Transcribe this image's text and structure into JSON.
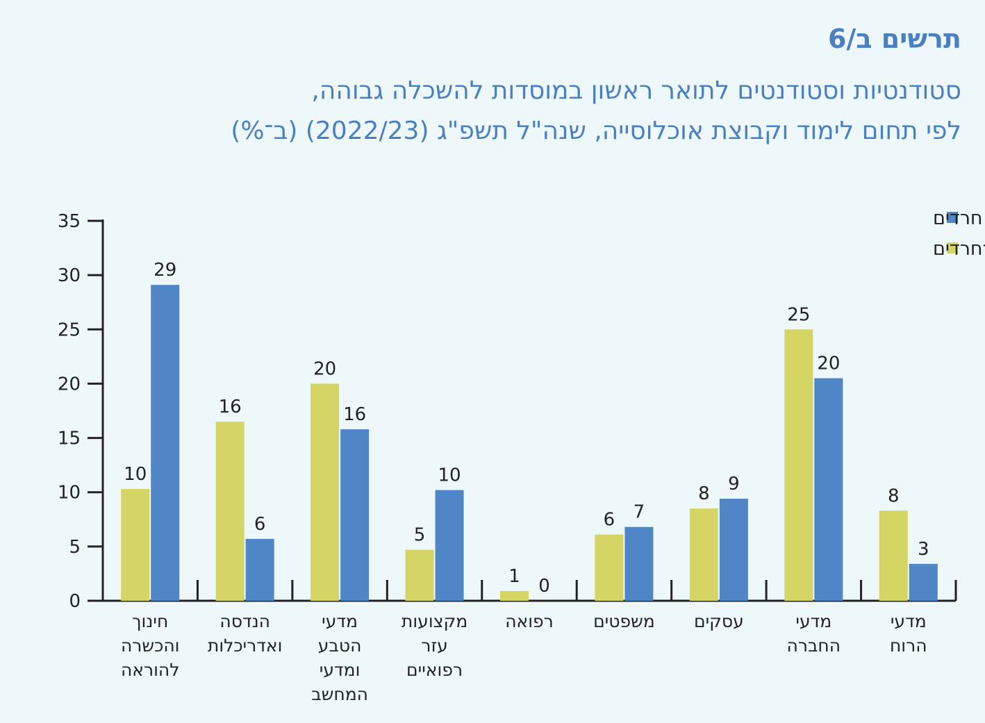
{
  "header": {
    "fig_label": "תרשים ב/6",
    "title_line1": "סטודנטיות וסטודנטים לתואר ראשון במוסדות להשכלה גבוהה,",
    "title_line2": "לפי תחום לימוד וקבוצת אוכלוסייה, שנה\"ל תשפ\"ג (2022/23) (ב־%)"
  },
  "colors": {
    "haredi": "#4f86c6",
    "non_haredi": "#d5d565",
    "background": "#eef7f9",
    "title": "#4a80c2"
  },
  "chart_data": {
    "type": "bar",
    "title": "",
    "xlabel": "",
    "ylabel": "",
    "ylim": [
      0,
      35
    ],
    "yticks": [
      0,
      5,
      10,
      15,
      20,
      25,
      30,
      35
    ],
    "legend_position": "top-right",
    "categories": [
      [
        "חינוך",
        "והכשרה",
        "להוראה"
      ],
      [
        "הנדסה",
        "ואדריכלות"
      ],
      [
        "מדעי",
        "הטבע",
        "ומדעי",
        "המחשב"
      ],
      [
        "מקצועות",
        "עזר",
        "רפואיים"
      ],
      [
        "רפואה"
      ],
      [
        "משפטים"
      ],
      [
        "עסקים"
      ],
      [
        "מדעי",
        "החברה"
      ],
      [
        "מדעי",
        "הרוח"
      ]
    ],
    "series": [
      {
        "name": "יהודים לא־חרדים",
        "color_key": "non_haredi",
        "values": [
          10.3,
          16.5,
          20.0,
          4.7,
          0.9,
          6.1,
          8.5,
          25.0,
          8.3
        ],
        "labels": [
          "10",
          "16",
          "20",
          "5",
          "1",
          "6",
          "8",
          "25",
          "8"
        ]
      },
      {
        "name": "חרדים",
        "color_key": "haredi",
        "values": [
          29.1,
          5.7,
          15.8,
          10.2,
          0.0,
          6.8,
          9.4,
          20.5,
          3.4
        ],
        "labels": [
          "29",
          "6",
          "16",
          "10",
          "0",
          "7",
          "9",
          "20",
          "3"
        ]
      }
    ]
  }
}
